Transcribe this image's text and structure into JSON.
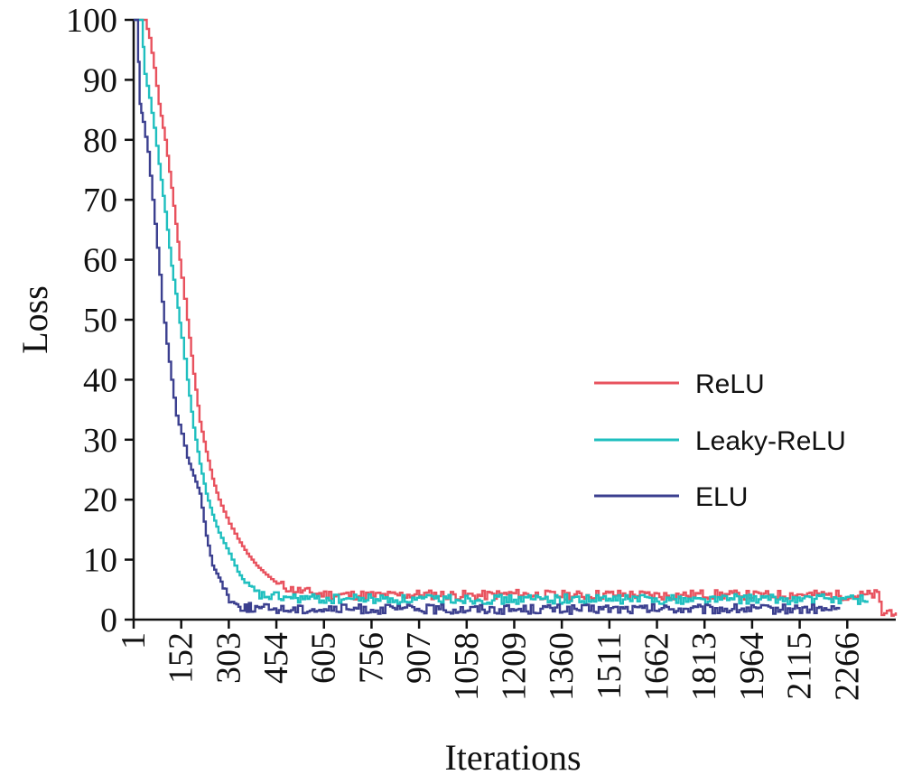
{
  "chart_data": {
    "type": "line",
    "title": "",
    "xlabel": "Iterations",
    "ylabel": "Loss",
    "xlim": [
      1,
      2420
    ],
    "ylim": [
      0,
      100
    ],
    "x_ticks": [
      "1",
      "152",
      "303",
      "454",
      "605",
      "756",
      "907",
      "1058",
      "1209",
      "1360",
      "1511",
      "1662",
      "1813",
      "1964",
      "2115",
      "2266"
    ],
    "y_ticks": [
      "0",
      "10",
      "20",
      "30",
      "40",
      "50",
      "60",
      "70",
      "80",
      "90",
      "100"
    ],
    "legend_position": "right",
    "grid": false,
    "series": [
      {
        "name": "ReLU",
        "color": "#e8525e",
        "x": [
          1,
          20,
          35,
          50,
          65,
          80,
          100,
          120,
          140,
          152,
          170,
          190,
          210,
          230,
          250,
          270,
          303,
          330,
          360,
          390,
          420,
          454,
          500,
          560,
          605,
          700,
          800,
          900,
          1000,
          1100,
          1200,
          1300,
          1400,
          1500,
          1600,
          1700,
          1800,
          1900,
          2000,
          2100,
          2200,
          2300,
          2360,
          2375,
          2400,
          2420
        ],
        "values": [
          100,
          100,
          100,
          97,
          92,
          86,
          80,
          72,
          63,
          57,
          50,
          41,
          33,
          28,
          23.5,
          20,
          16,
          13.5,
          11,
          9,
          7.5,
          6,
          5,
          4.5,
          4.2,
          4.1,
          4.0,
          4.2,
          4.1,
          4.0,
          4.3,
          4.1,
          4.0,
          4.2,
          4.1,
          4.0,
          4.2,
          4.1,
          4.0,
          4.2,
          4.1,
          4.0,
          4.2,
          1.0,
          1.5,
          1.2
        ]
      },
      {
        "name": "Leaky-ReLU",
        "color": "#1fbfbf",
        "x": [
          1,
          15,
          25,
          35,
          50,
          65,
          80,
          100,
          120,
          140,
          152,
          170,
          190,
          210,
          230,
          250,
          270,
          303,
          330,
          360,
          400,
          454,
          500,
          560,
          605,
          700,
          800,
          900,
          1000,
          1100,
          1200,
          1300,
          1400,
          1500,
          1600,
          1700,
          1800,
          1900,
          2000,
          2100,
          2200,
          2300,
          2330
        ],
        "values": [
          100,
          100,
          100,
          91,
          87,
          82,
          76,
          68,
          59,
          52,
          47,
          40,
          32,
          26,
          21,
          17.5,
          14.5,
          11,
          8,
          5.5,
          4,
          3.8,
          3.6,
          3.5,
          3.4,
          3.5,
          3.4,
          3.3,
          3.5,
          3.4,
          3.3,
          3.5,
          3.4,
          3.3,
          3.5,
          3.4,
          3.3,
          3.5,
          3.4,
          3.3,
          3.5,
          3.4,
          3.2
        ]
      },
      {
        "name": "ELU",
        "color": "#3b3f8f",
        "x": [
          1,
          10,
          20,
          30,
          45,
          60,
          75,
          90,
          105,
          120,
          135,
          152,
          170,
          190,
          210,
          230,
          250,
          270,
          290,
          303,
          320,
          340,
          360,
          380,
          400,
          430,
          454,
          500,
          560,
          605,
          700,
          800,
          900,
          1000,
          1100,
          1200,
          1300,
          1400,
          1500,
          1600,
          1700,
          1800,
          1900,
          2000,
          2100,
          2200,
          2240
        ],
        "values": [
          100,
          100,
          86,
          83,
          78,
          70,
          62,
          53,
          46,
          40,
          34,
          31,
          27,
          24,
          21,
          14,
          9,
          7,
          5,
          3.5,
          2.5,
          2.2,
          2.0,
          2.0,
          1.8,
          1.9,
          1.8,
          1.7,
          1.8,
          1.7,
          1.8,
          1.7,
          1.8,
          1.7,
          1.8,
          1.7,
          1.8,
          1.7,
          1.8,
          1.7,
          1.8,
          1.7,
          1.8,
          1.7,
          1.8,
          1.7,
          1.7
        ]
      }
    ]
  }
}
